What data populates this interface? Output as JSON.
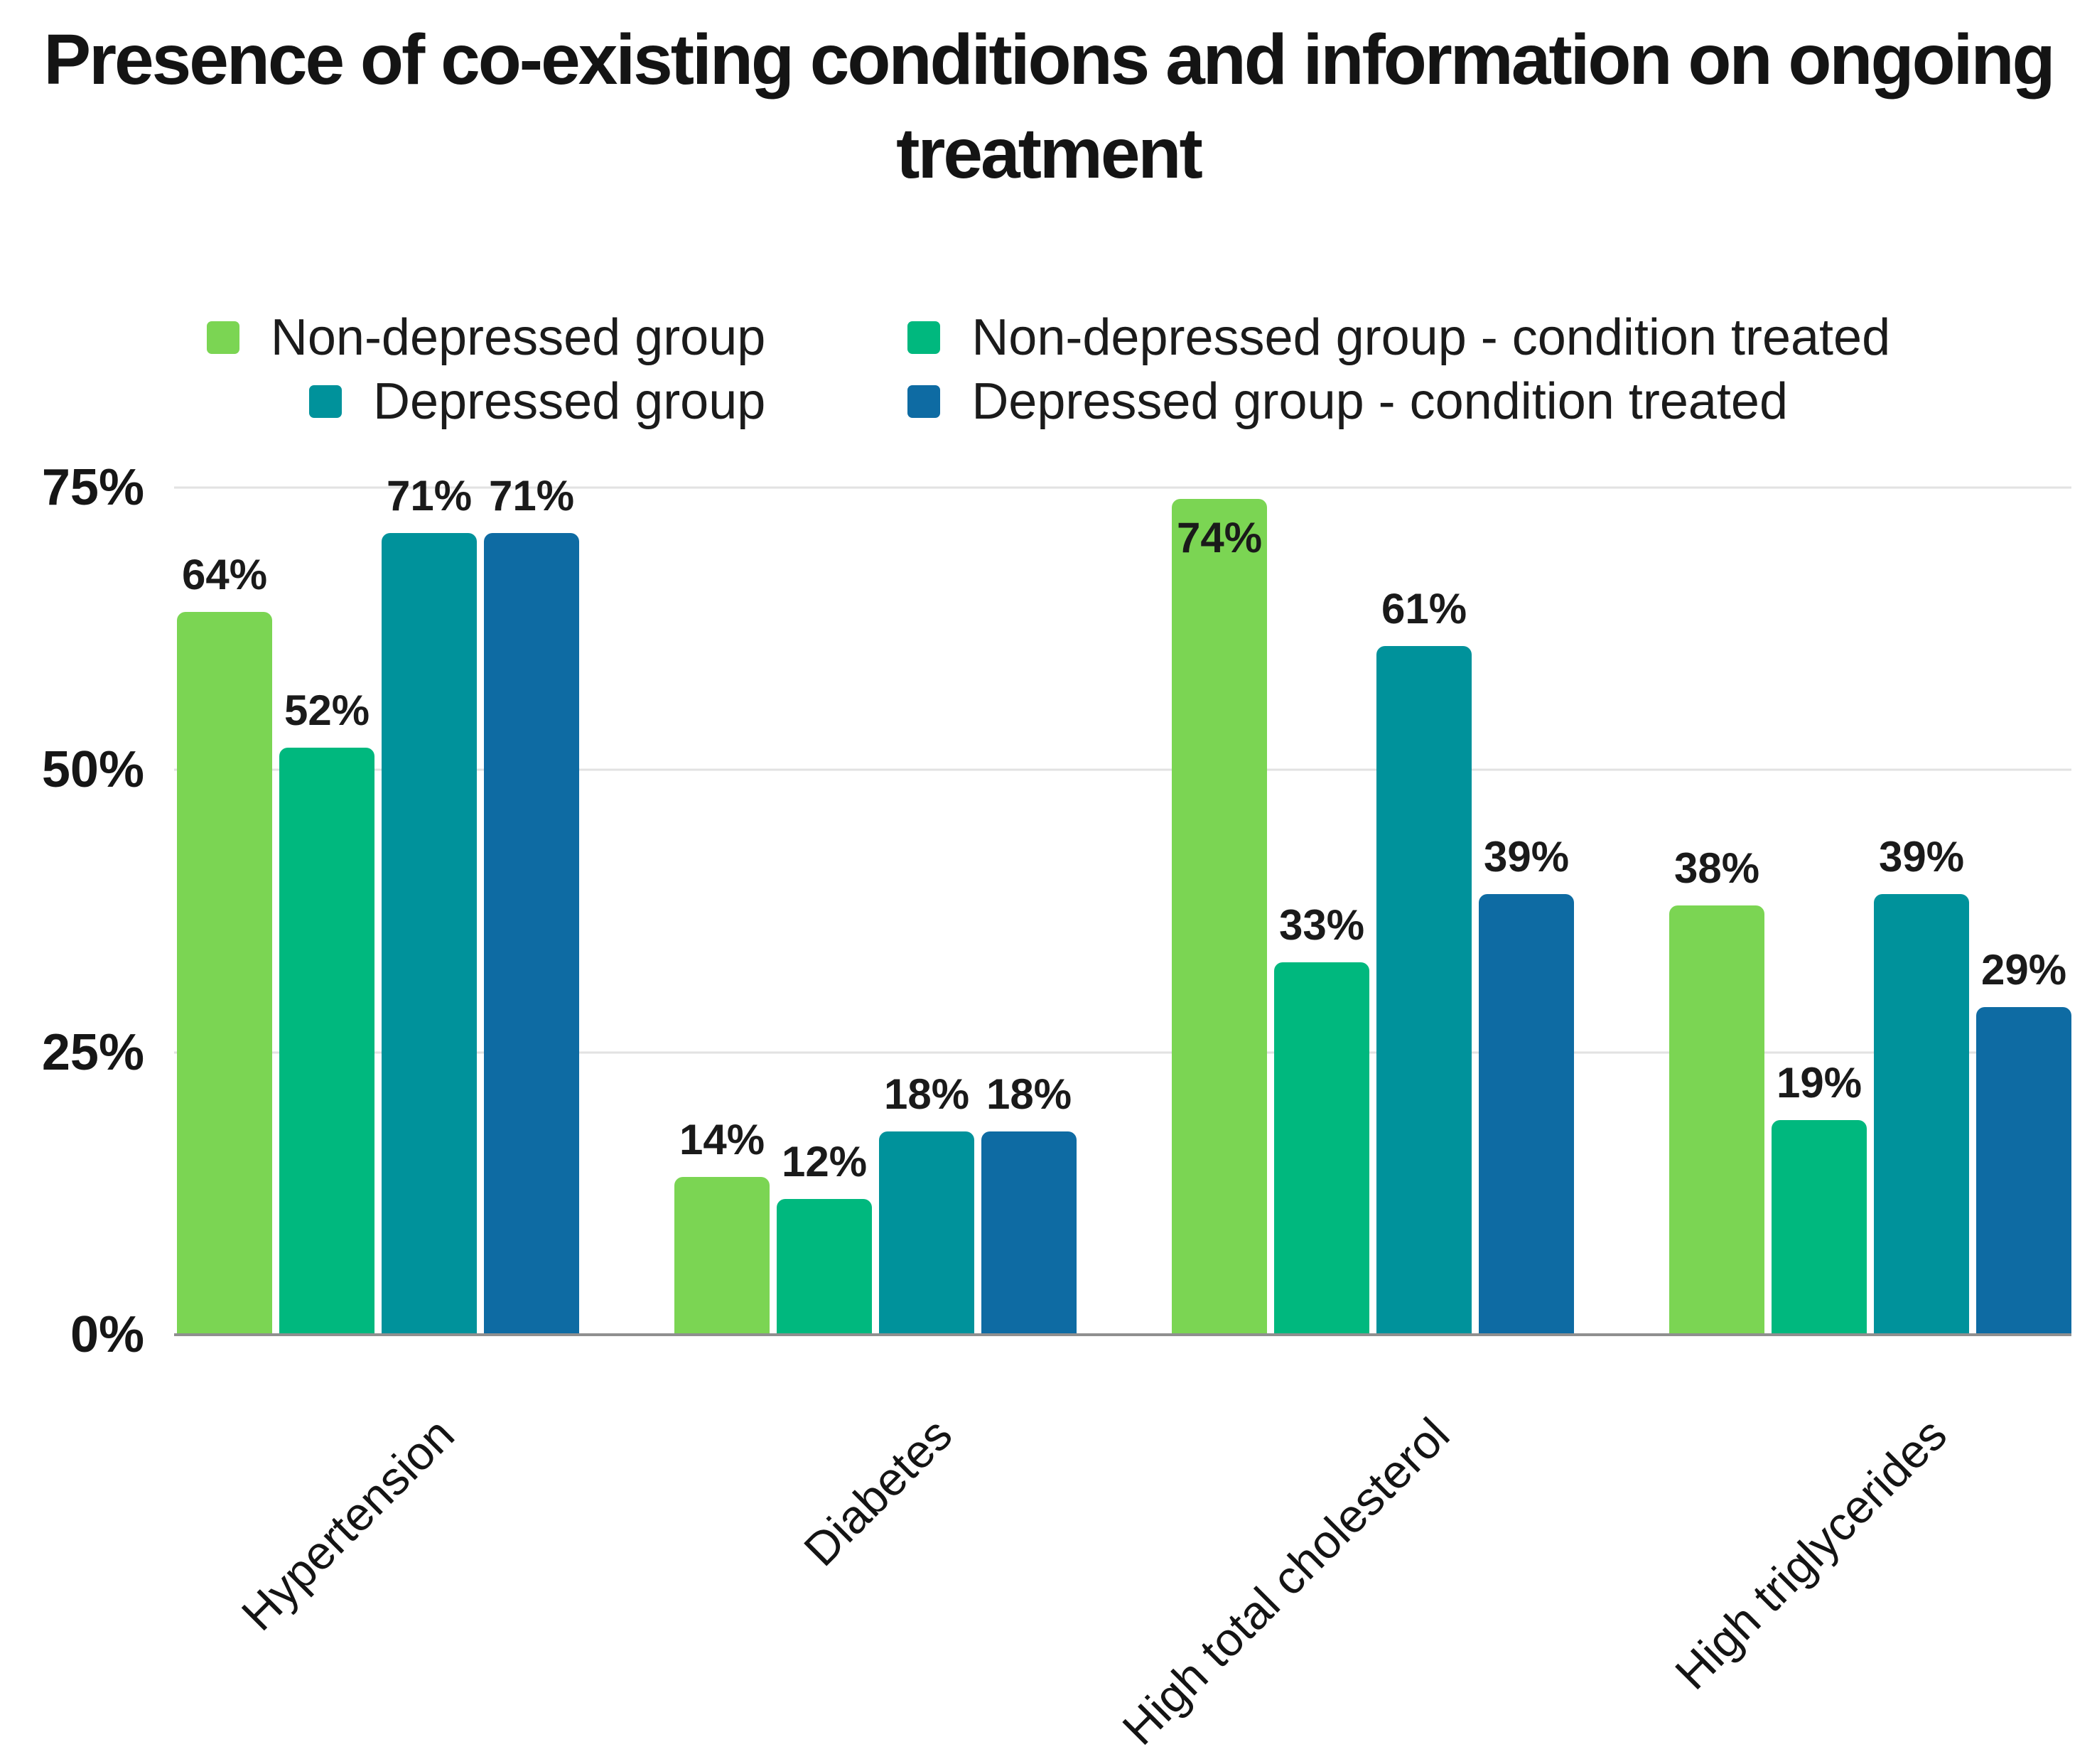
{
  "header": {
    "title_line1": "Presence of co-existing conditions and information on ongoing",
    "title_line2": "treatment"
  },
  "colors": {
    "background": "#ffffff",
    "title_text": "#141414",
    "axis_text": "#161616",
    "value_label_text": "#1a1a1a",
    "gridline": "#e2e2e2",
    "baseline": "#8f8f8f",
    "non_depressed": "#7bd553",
    "non_depressed_treated": "#00b87e",
    "depressed": "#00929b",
    "depressed_treated": "#0e6ba3"
  },
  "chart_data": {
    "type": "bar",
    "title": "Presence of co-existing conditions and information on ongoing treatment",
    "categories": [
      "Hypertension",
      "Diabetes",
      "High total cholesterol",
      "High triglycerides"
    ],
    "series": [
      {
        "name": "Non-depressed group",
        "color": "#7bd553",
        "values": [
          64,
          14,
          74,
          38
        ]
      },
      {
        "name": "Non-depressed group - condition treated",
        "color": "#00b87e",
        "values": [
          52,
          12,
          33,
          19
        ]
      },
      {
        "name": "Depressed group",
        "color": "#00929b",
        "values": [
          71,
          18,
          61,
          39
        ]
      },
      {
        "name": "Depressed group - condition treated",
        "color": "#0e6ba3",
        "values": [
          71,
          18,
          39,
          29
        ]
      }
    ],
    "xlabel": "",
    "ylabel": "",
    "ylim": [
      0,
      75
    ],
    "y_ticks": [
      "0%",
      "25%",
      "50%",
      "75%"
    ],
    "value_label_format": "{v}%",
    "value_label_inside_threshold": 73,
    "grid": true,
    "legend_position": "top",
    "legend_rows": [
      [
        "Non-depressed group",
        "Non-depressed group - condition treated"
      ],
      [
        "Depressed group",
        "Depressed group - condition treated"
      ]
    ]
  }
}
